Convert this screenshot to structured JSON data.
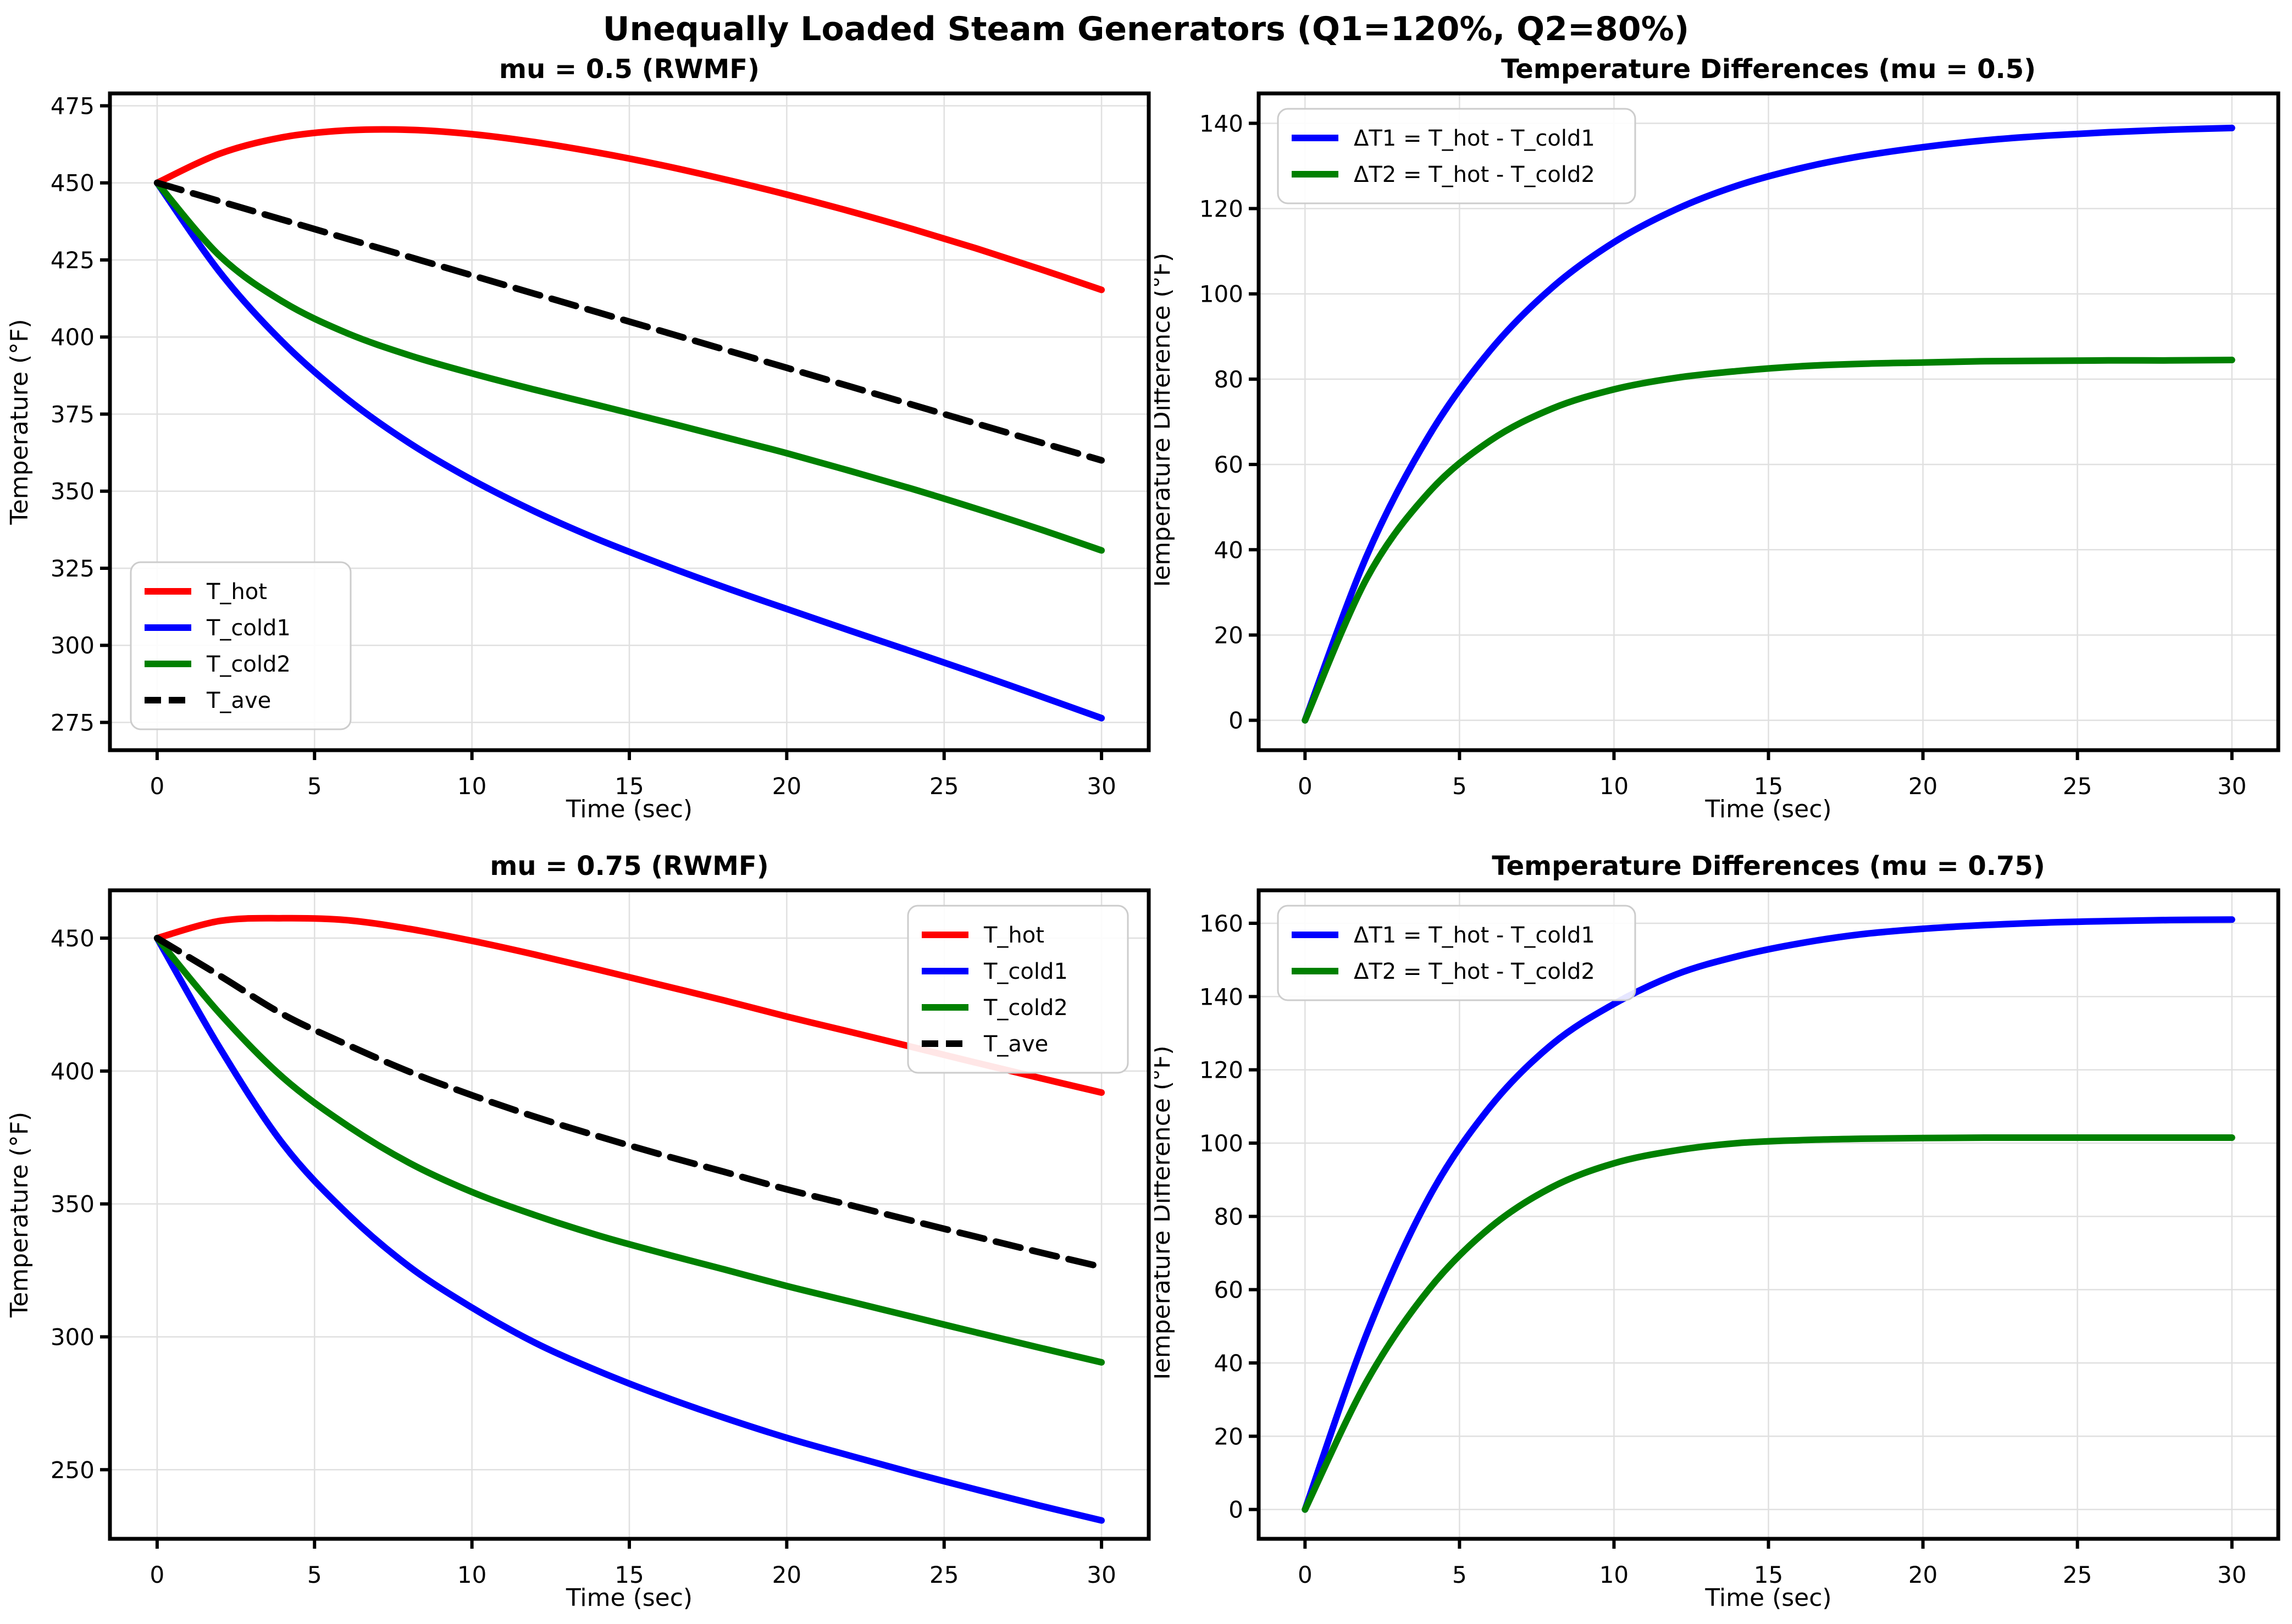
{
  "figure": {
    "suptitle": "Unequally Loaded Steam Generators (Q1=120%, Q2=80%)",
    "background_color": "#ffffff",
    "grid_color": "#e0e0e0",
    "text_color": "#000000",
    "spine_color": "#000000"
  },
  "chart_data": [
    {
      "id": "mu05_temperatures",
      "type": "line",
      "title": "mu = 0.5 (RWMF)",
      "xlabel": "Time (sec)",
      "ylabel": "Temperature (°F)",
      "x": [
        0,
        2,
        4,
        6,
        8,
        10,
        12,
        14,
        16,
        18,
        20,
        22,
        24,
        26,
        28,
        30
      ],
      "xlim": [
        -1.5,
        31.5
      ],
      "ylim": [
        266,
        479
      ],
      "xticks": [
        0,
        5,
        10,
        15,
        20,
        25,
        30
      ],
      "yticks": [
        275,
        300,
        325,
        350,
        375,
        400,
        425,
        450,
        475
      ],
      "grid": true,
      "legend_loc": "lower-left",
      "series": [
        {
          "name": "T_hot",
          "color": "#ff0000",
          "linestyle": "solid",
          "values": [
            450.0,
            459.5,
            464.8,
            467.0,
            467.2,
            465.8,
            463.2,
            459.8,
            455.8,
            451.2,
            446.2,
            440.8,
            435.0,
            428.8,
            422.2,
            415.3
          ]
        },
        {
          "name": "T_cold1",
          "color": "#0000ff",
          "linestyle": "solid",
          "values": [
            450.0,
            420.9,
            398.2,
            380.2,
            365.7,
            353.7,
            343.4,
            334.4,
            326.4,
            318.9,
            311.8,
            304.8,
            297.9,
            290.9,
            283.7,
            276.4
          ]
        },
        {
          "name": "T_cold2",
          "color": "#008000",
          "linestyle": "solid",
          "values": [
            450.0,
            426.2,
            411.4,
            401.4,
            394.1,
            388.2,
            382.9,
            377.9,
            372.8,
            367.6,
            362.3,
            356.6,
            350.7,
            344.4,
            337.8,
            330.8
          ]
        },
        {
          "name": "T_ave",
          "color": "#000000",
          "linestyle": "dashed",
          "values": [
            450.0,
            444.0,
            438.0,
            432.0,
            426.0,
            420.0,
            414.0,
            408.0,
            402.0,
            396.0,
            390.0,
            384.0,
            378.0,
            372.0,
            366.0,
            360.0
          ]
        }
      ]
    },
    {
      "id": "mu05_differences",
      "type": "line",
      "title": "Temperature Differences (mu = 0.5)",
      "xlabel": "Time (sec)",
      "ylabel": "Temperature Difference (°F)",
      "x": [
        0,
        2,
        4,
        6,
        8,
        10,
        12,
        14,
        16,
        18,
        20,
        22,
        24,
        26,
        28,
        30
      ],
      "xlim": [
        -1.5,
        31.5
      ],
      "ylim": [
        -7,
        147
      ],
      "xticks": [
        0,
        5,
        10,
        15,
        20,
        25,
        30
      ],
      "yticks": [
        0,
        20,
        40,
        60,
        80,
        100,
        120,
        140
      ],
      "grid": true,
      "legend_loc": "upper-left",
      "series": [
        {
          "name": "ΔT1 = T_hot - T_cold1",
          "color": "#0000ff",
          "linestyle": "solid",
          "values": [
            0,
            38.6,
            66.6,
            86.8,
            101.5,
            112.1,
            119.8,
            125.4,
            129.4,
            132.3,
            134.4,
            136.0,
            137.1,
            137.9,
            138.5,
            138.9
          ]
        },
        {
          "name": "ΔT2 = T_hot - T_cold2",
          "color": "#008000",
          "linestyle": "solid",
          "values": [
            0,
            33.3,
            53.4,
            65.6,
            73.1,
            77.6,
            80.3,
            81.9,
            83.0,
            83.6,
            83.9,
            84.2,
            84.3,
            84.4,
            84.4,
            84.5
          ]
        }
      ]
    },
    {
      "id": "mu75_temperatures",
      "type": "line",
      "title": "mu = 0.75 (RWMF)",
      "xlabel": "Time (sec)",
      "ylabel": "Temperature (°F)",
      "x": [
        0,
        2,
        4,
        6,
        8,
        10,
        12,
        14,
        16,
        18,
        20,
        22,
        24,
        26,
        28,
        30
      ],
      "xlim": [
        -1.5,
        31.5
      ],
      "ylim": [
        224,
        468
      ],
      "xticks": [
        0,
        5,
        10,
        15,
        20,
        25,
        30
      ],
      "yticks": [
        250,
        300,
        350,
        400,
        450
      ],
      "grid": true,
      "legend_loc": "upper-right",
      "series": [
        {
          "name": "T_hot",
          "color": "#ff0000",
          "linestyle": "solid",
          "values": [
            450.0,
            456.5,
            457.5,
            456.8,
            453.5,
            449.0,
            443.8,
            438.2,
            432.4,
            426.6,
            420.5,
            414.8,
            409.0,
            403.2,
            397.5,
            391.9
          ]
        },
        {
          "name": "T_cold1",
          "color": "#0000ff",
          "linestyle": "solid",
          "values": [
            450.0,
            408.5,
            372.5,
            346.8,
            326.5,
            311.0,
            297.8,
            287.2,
            277.9,
            269.6,
            262.0,
            255.3,
            248.8,
            242.6,
            236.6,
            230.9
          ]
        },
        {
          "name": "T_cold2",
          "color": "#008000",
          "linestyle": "solid",
          "values": [
            450.0,
            421.5,
            397.5,
            379.8,
            365.5,
            354.5,
            345.8,
            338.2,
            331.6,
            325.4,
            319.1,
            313.3,
            307.5,
            301.7,
            296.0,
            290.4
          ]
        },
        {
          "name": "T_ave",
          "color": "#000000",
          "linestyle": "dashed",
          "values": [
            450.0,
            435.8,
            421.3,
            410.1,
            399.8,
            390.9,
            382.8,
            375.5,
            368.6,
            362.1,
            355.5,
            349.6,
            343.6,
            337.7,
            331.9,
            326.3
          ]
        }
      ]
    },
    {
      "id": "mu75_differences",
      "type": "line",
      "title": "Temperature Differences (mu = 0.75)",
      "xlabel": "Time (sec)",
      "ylabel": "Temperature Difference (°F)",
      "x": [
        0,
        2,
        4,
        6,
        8,
        10,
        12,
        14,
        16,
        18,
        20,
        22,
        24,
        26,
        28,
        30
      ],
      "xlim": [
        -1.5,
        31.5
      ],
      "ylim": [
        -8,
        169
      ],
      "xticks": [
        0,
        5,
        10,
        15,
        20,
        25,
        30
      ],
      "yticks": [
        0,
        20,
        40,
        60,
        80,
        100,
        120,
        140,
        160
      ],
      "grid": true,
      "legend_loc": "upper-left",
      "series": [
        {
          "name": "ΔT1 = T_hot - T_cold1",
          "color": "#0000ff",
          "linestyle": "solid",
          "values": [
            0,
            48.0,
            85.0,
            110.0,
            127.0,
            138.0,
            146.0,
            151.0,
            154.5,
            157.0,
            158.5,
            159.5,
            160.2,
            160.6,
            160.9,
            161.0
          ]
        },
        {
          "name": "ΔT2 = T_hot - T_cold2",
          "color": "#008000",
          "linestyle": "solid",
          "values": [
            0,
            35.0,
            60.0,
            77.0,
            88.0,
            94.5,
            98.0,
            100.0,
            100.8,
            101.2,
            101.4,
            101.5,
            101.5,
            101.5,
            101.5,
            101.5
          ]
        }
      ]
    }
  ]
}
